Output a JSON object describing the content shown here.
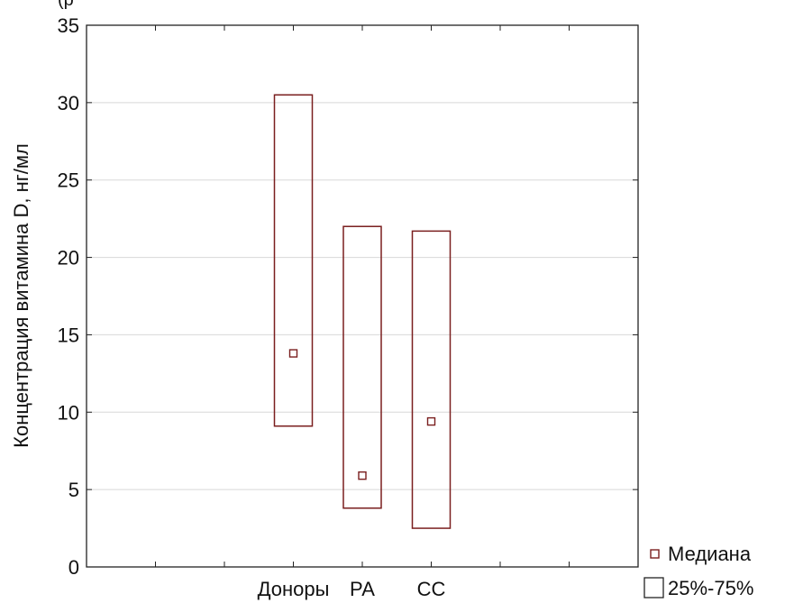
{
  "fragment_text": "(р",
  "chart_data": {
    "type": "box",
    "title": "",
    "xlabel": "",
    "ylabel": "Концентрация витамина D, нг/мл",
    "ylim": [
      0,
      35
    ],
    "yticks": [
      "0",
      "5",
      "10",
      "15",
      "20",
      "25",
      "30",
      "35"
    ],
    "grid": true,
    "legend_position": "bottom-right",
    "categories": [
      "Доноры",
      "РА",
      "СС"
    ],
    "category_slots": [
      3,
      4,
      5
    ],
    "slot_count": 8,
    "boxes": [
      {
        "category": "Доноры",
        "median": 13.8,
        "q1": 9.1,
        "q3": 30.5
      },
      {
        "category": "РА",
        "median": 5.9,
        "q1": 3.8,
        "q3": 22.0
      },
      {
        "category": "СС",
        "median": 9.4,
        "q1": 2.5,
        "q3": 21.7
      }
    ],
    "legend": [
      {
        "label": "Медиана",
        "symbol": "small-square"
      },
      {
        "label": "25%-75%",
        "symbol": "box"
      }
    ],
    "colors": {
      "box": "#7a1f1f",
      "grid": "#d8d8d8",
      "axis": "#222222"
    }
  }
}
